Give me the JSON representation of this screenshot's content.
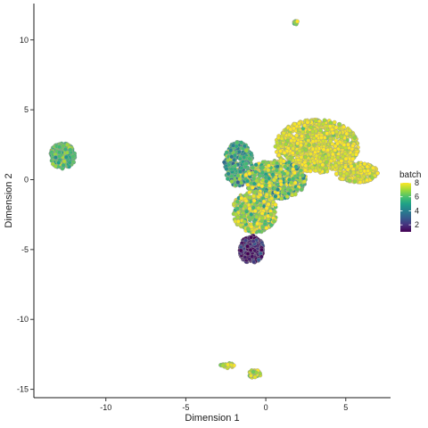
{
  "chart_data": {
    "type": "scatter",
    "xlabel": "Dimension 1",
    "ylabel": "Dimension 2",
    "xlim": [
      -14.5,
      7.8
    ],
    "ylim": [
      -15.6,
      12.6
    ],
    "x_ticks": [
      -10,
      -5,
      0,
      5
    ],
    "y_ticks": [
      -15,
      -10,
      -5,
      0,
      5,
      10
    ],
    "grid": false,
    "legend": {
      "title": "batch",
      "placement": "right",
      "type": "colorbar",
      "range": [
        1,
        8
      ],
      "ticks": [
        2,
        4,
        6,
        8
      ]
    },
    "colors": {
      "1": "#440154",
      "2": "#46327e",
      "3": "#365c8d",
      "4": "#277f8e",
      "5": "#1fa187",
      "6": "#4ac16d",
      "7": "#a0da39",
      "8": "#fde725",
      "outline": "#9a9a9a"
    },
    "clusters": [
      {
        "label": "left cluster",
        "cx": -12.7,
        "cy": 1.7,
        "rx": 0.8,
        "ry": 0.9,
        "n": 260,
        "batch_mean": 6.0,
        "batch_sd": 0.7
      },
      {
        "label": "top cluster",
        "cx": 1.9,
        "cy": 11.2,
        "rx": 0.15,
        "ry": 0.15,
        "n": 10,
        "batch_mean": 7.0,
        "batch_sd": 0.8
      },
      {
        "label": "main upper-right lobe",
        "cx": 3.2,
        "cy": 2.4,
        "rx": 2.6,
        "ry": 1.9,
        "n": 1100,
        "batch_mean": 7.8,
        "batch_sd": 0.6
      },
      {
        "label": "main right tail",
        "cx": 5.7,
        "cy": 0.5,
        "rx": 1.3,
        "ry": 0.7,
        "n": 240,
        "batch_mean": 7.8,
        "batch_sd": 0.5
      },
      {
        "label": "main left rim",
        "cx": -1.7,
        "cy": 1.1,
        "rx": 0.9,
        "ry": 1.6,
        "n": 320,
        "batch_mean": 5.2,
        "batch_sd": 1.2
      },
      {
        "label": "main central",
        "cx": 0.6,
        "cy": 0.0,
        "rx": 1.9,
        "ry": 1.4,
        "n": 650,
        "batch_mean": 6.8,
        "batch_sd": 1.4
      },
      {
        "label": "main lower body",
        "cx": -0.7,
        "cy": -2.3,
        "rx": 1.4,
        "ry": 1.5,
        "n": 420,
        "batch_mean": 7.2,
        "batch_sd": 1.1
      },
      {
        "label": "bottom purple lobe",
        "cx": -0.9,
        "cy": -5.0,
        "rx": 0.75,
        "ry": 1.0,
        "n": 300,
        "batch_mean": 1.6,
        "batch_sd": 0.6
      },
      {
        "label": "bottom small cluster left",
        "cx": -2.4,
        "cy": -13.3,
        "rx": 0.45,
        "ry": 0.18,
        "n": 30,
        "batch_mean": 7.2,
        "batch_sd": 0.6
      },
      {
        "label": "bottom small cluster right",
        "cx": -0.7,
        "cy": -13.9,
        "rx": 0.38,
        "ry": 0.3,
        "n": 35,
        "batch_mean": 7.2,
        "batch_sd": 0.6
      }
    ]
  }
}
